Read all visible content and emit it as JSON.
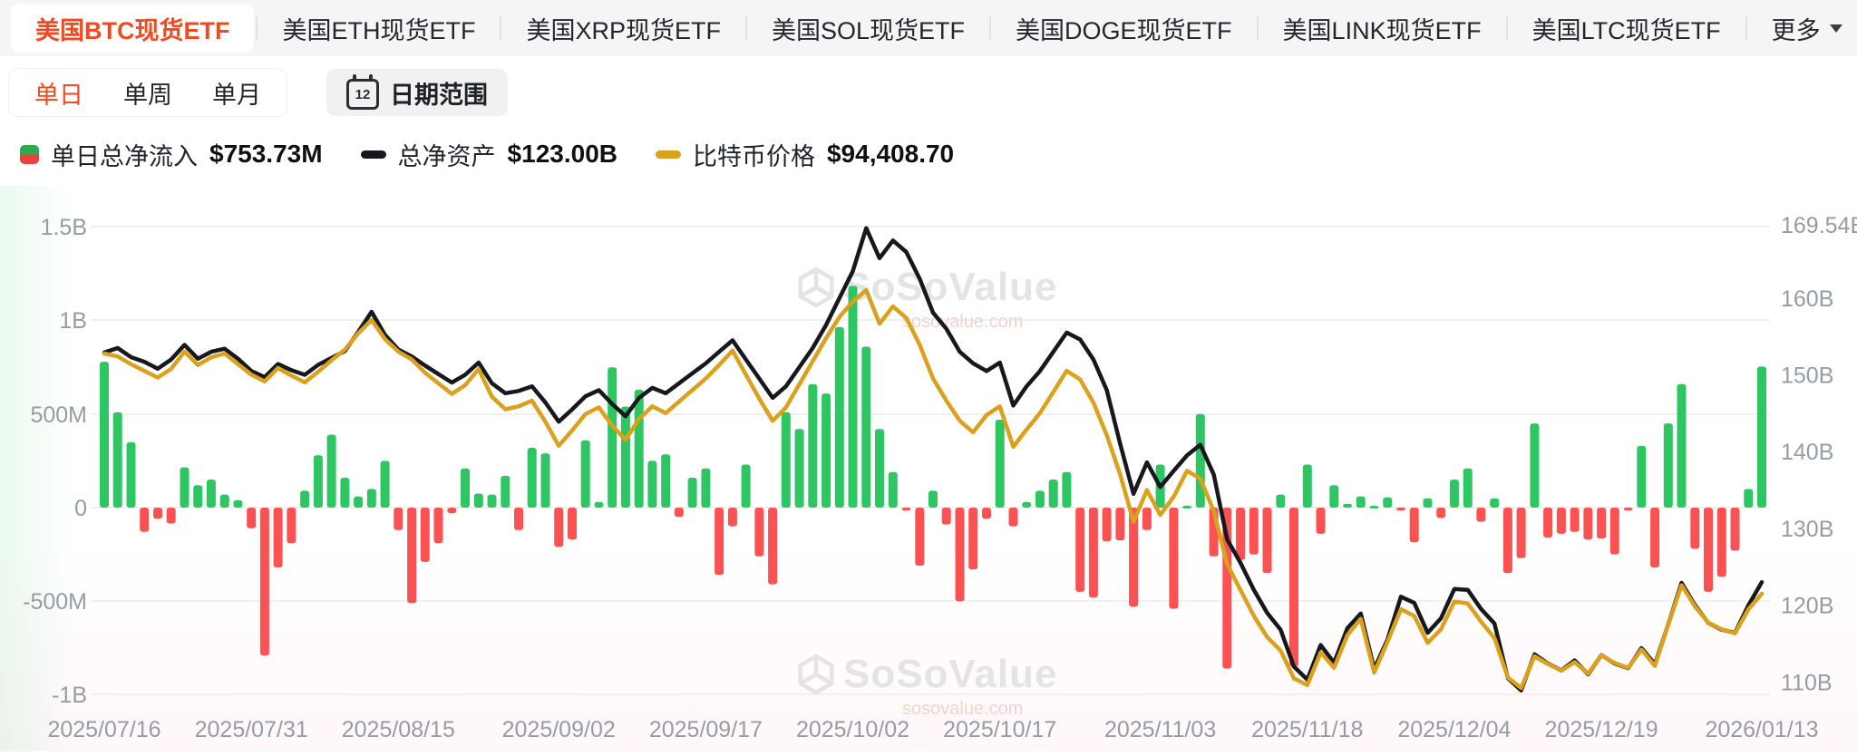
{
  "tabs": {
    "items": [
      {
        "label": "美国BTC现货ETF",
        "active": true
      },
      {
        "label": "美国ETH现货ETF",
        "active": false
      },
      {
        "label": "美国XRP现货ETF",
        "active": false
      },
      {
        "label": "美国SOL现货ETF",
        "active": false
      },
      {
        "label": "美国DOGE现货ETF",
        "active": false
      },
      {
        "label": "美国LINK现货ETF",
        "active": false
      },
      {
        "label": "美国LTC现货ETF",
        "active": false
      }
    ],
    "more_label": "更多"
  },
  "period_filters": {
    "items": [
      "单日",
      "单周",
      "单月"
    ],
    "active": "单日",
    "calendar_day": "12",
    "date_range_label": "日期范围"
  },
  "legend": {
    "flow": {
      "label": "单日总净流入",
      "value": "$753.73M"
    },
    "assets": {
      "label": "总净资产",
      "value": "$123.00B"
    },
    "price": {
      "label": "比特币价格",
      "value": "$94,408.70"
    }
  },
  "watermark": {
    "brand": "SoSoValue",
    "domain": "sosovalue.com"
  },
  "colors": {
    "accent_orange": "#f4491f",
    "bar_positive": "#2ec563",
    "bar_negative": "#fa5252",
    "assets_line": "#16181d",
    "price_line": "#dba01c",
    "axis_text": "#969ca4",
    "grid": "#ececee",
    "watermark": "#e4e4e6",
    "watermark_domain": "#edd6d2"
  },
  "chart_data": {
    "type": "combo",
    "title": "美国BTC现货ETF 单日总净流入 / 总净资产 / 比特币价格",
    "x_count": 125,
    "x_ticks": [
      {
        "index": 0,
        "label": "2025/07/16"
      },
      {
        "index": 11,
        "label": "2025/07/31"
      },
      {
        "index": 22,
        "label": "2025/08/15"
      },
      {
        "index": 34,
        "label": "2025/09/02"
      },
      {
        "index": 45,
        "label": "2025/09/17"
      },
      {
        "index": 56,
        "label": "2025/10/02"
      },
      {
        "index": 67,
        "label": "2025/10/17"
      },
      {
        "index": 79,
        "label": "2025/11/03"
      },
      {
        "index": 90,
        "label": "2025/11/18"
      },
      {
        "index": 101,
        "label": "2025/12/04"
      },
      {
        "index": 112,
        "label": "2025/12/19"
      },
      {
        "index": 124,
        "label": "2026/01/13"
      }
    ],
    "left_axis": {
      "labels": [
        "1.5B",
        "1B",
        "500M",
        "0",
        "-500M",
        "-1B"
      ],
      "values_M": [
        1500,
        1000,
        500,
        0,
        -500,
        -1000
      ],
      "grid": true
    },
    "right_axis": {
      "labels": [
        "169.54B",
        "160B",
        "150B",
        "140B",
        "130B",
        "120B",
        "110B"
      ],
      "values_B": [
        169.54,
        160,
        150,
        140,
        130,
        120,
        110
      ]
    },
    "series": [
      {
        "name": "单日总净流入",
        "type": "bar",
        "unit": "USD_M",
        "latest": "$753.73M",
        "values": [
          780,
          510,
          350,
          -130,
          -60,
          -85,
          215,
          120,
          150,
          70,
          40,
          -110,
          -790,
          -320,
          -190,
          90,
          280,
          390,
          160,
          60,
          100,
          250,
          -120,
          -510,
          -290,
          -190,
          -30,
          210,
          75,
          70,
          170,
          -120,
          320,
          290,
          -210,
          -170,
          360,
          30,
          750,
          540,
          630,
          250,
          285,
          -50,
          160,
          210,
          -360,
          -100,
          230,
          -260,
          -410,
          510,
          420,
          660,
          610,
          965,
          1185,
          860,
          420,
          190,
          -15,
          -310,
          90,
          -90,
          -500,
          -330,
          -60,
          470,
          -100,
          30,
          90,
          150,
          190,
          -450,
          -480,
          -180,
          -175,
          -530,
          -120,
          230,
          -540,
          10,
          500,
          -260,
          -860,
          -280,
          -250,
          -350,
          70,
          -850,
          230,
          -140,
          120,
          20,
          60,
          10,
          55,
          -15,
          -185,
          50,
          -55,
          150,
          210,
          -75,
          50,
          -350,
          -270,
          450,
          -160,
          -140,
          -130,
          -170,
          -165,
          -250,
          -15,
          330,
          -320,
          450,
          660,
          -220,
          -450,
          -370,
          -230,
          100,
          753.73
        ]
      },
      {
        "name": "总净资产",
        "type": "line",
        "unit": "USD_B",
        "latest": "$123.00B",
        "values": [
          152.9,
          153.5,
          152.3,
          151.7,
          150.8,
          152.0,
          153.9,
          152.1,
          153.0,
          153.4,
          152.1,
          150.5,
          149.7,
          151.4,
          150.6,
          150.0,
          151.3,
          152.2,
          153.1,
          155.6,
          158.2,
          155.2,
          153.3,
          152.4,
          151.2,
          150.1,
          149.0,
          150.0,
          151.6,
          148.9,
          147.6,
          147.9,
          148.5,
          146.4,
          143.9,
          145.5,
          147.2,
          148.0,
          146.2,
          144.6,
          147.0,
          148.3,
          147.6,
          148.9,
          150.2,
          151.5,
          153.0,
          154.5,
          152.0,
          149.5,
          147.0,
          148.5,
          151.0,
          153.5,
          156.5,
          160.0,
          163.5,
          169.1,
          165.2,
          167.5,
          166.0,
          162.5,
          158.1,
          156.0,
          153.0,
          151.5,
          150.5,
          151.6,
          146.0,
          148.5,
          150.5,
          153.0,
          155.5,
          154.6,
          152.0,
          148.0,
          141.0,
          134.5,
          138.6,
          135.4,
          137.5,
          139.5,
          140.9,
          137.0,
          128.6,
          125.5,
          122.0,
          119.0,
          116.8,
          112.0,
          110.3,
          114.8,
          112.5,
          117.0,
          118.9,
          111.7,
          115.5,
          121.1,
          120.3,
          116.4,
          118.3,
          122.1,
          122.0,
          119.5,
          117.6,
          110.5,
          108.9,
          113.6,
          112.4,
          111.5,
          112.8,
          111.0,
          113.5,
          112.4,
          111.8,
          114.4,
          112.3,
          117.5,
          122.9,
          120.0,
          117.7,
          116.8,
          116.4,
          120.0,
          123.0
        ]
      },
      {
        "name": "比特币价格",
        "type": "line",
        "unit": "USD",
        "latest": "$94,408.70",
        "values": [
          119400,
          119100,
          118300,
          117600,
          116900,
          117800,
          119600,
          118200,
          119000,
          119400,
          118300,
          117200,
          116500,
          117900,
          117100,
          116400,
          117500,
          118700,
          119800,
          121500,
          122900,
          120900,
          119600,
          118800,
          117400,
          116300,
          115200,
          116100,
          117800,
          114900,
          113600,
          113900,
          114500,
          112300,
          109800,
          111400,
          113100,
          113800,
          111900,
          110400,
          112600,
          113900,
          113200,
          114400,
          115600,
          116800,
          118200,
          119700,
          117200,
          114700,
          112400,
          113800,
          116200,
          118600,
          121000,
          123200,
          124800,
          126000,
          122500,
          124300,
          123100,
          120300,
          116800,
          114500,
          112400,
          111200,
          113000,
          113900,
          109700,
          111500,
          113200,
          115400,
          117600,
          116700,
          114300,
          110900,
          106800,
          101900,
          105200,
          102600,
          104500,
          107200,
          106400,
          103000,
          97500,
          94800,
          92100,
          89900,
          88500,
          85600,
          84900,
          88300,
          86700,
          90100,
          91800,
          86200,
          89400,
          92800,
          92100,
          89300,
          90700,
          93600,
          93400,
          91500,
          89800,
          85700,
          84600,
          87900,
          87100,
          86400,
          87300,
          86100,
          88000,
          87200,
          86700,
          88600,
          86900,
          91200,
          95300,
          93100,
          91400,
          90700,
          90300,
          92800,
          94408.7
        ]
      }
    ]
  }
}
